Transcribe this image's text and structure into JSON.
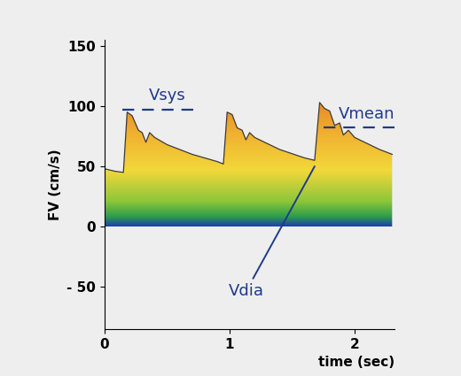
{
  "chart_data": {
    "type": "line",
    "x": [
      0.0,
      0.08,
      0.15,
      0.18,
      0.22,
      0.27,
      0.3,
      0.33,
      0.36,
      0.4,
      0.5,
      0.7,
      0.9,
      0.95,
      0.98,
      1.02,
      1.06,
      1.1,
      1.13,
      1.16,
      1.2,
      1.4,
      1.6,
      1.68,
      1.72,
      1.76,
      1.8,
      1.84,
      1.88,
      1.91,
      1.95,
      2.0,
      2.2,
      2.3
    ],
    "values": [
      48,
      46,
      45,
      95,
      92,
      80,
      78,
      70,
      78,
      74,
      68,
      60,
      54,
      52,
      95,
      93,
      82,
      80,
      72,
      78,
      74,
      64,
      57,
      55,
      103,
      98,
      96,
      84,
      86,
      76,
      80,
      74,
      64,
      60
    ],
    "xlabel": "time (sec)",
    "ylabel": "FV (cm/s)",
    "xlim": [
      0,
      2.32
    ],
    "xticks": [
      0,
      1,
      2
    ],
    "ylim": [
      -85,
      155
    ],
    "yticks": [
      {
        "value": -50,
        "label": "- 50"
      },
      0,
      50,
      100,
      150
    ],
    "annotations": [
      {
        "text": "Vsys",
        "y": 97,
        "x": [
          0.14,
          0.76
        ]
      },
      {
        "text": "Vmean",
        "y": 82,
        "x": [
          1.75,
          2.32
        ]
      },
      {
        "text": "Vdia",
        "x": 1.68,
        "y": 50
      }
    ]
  }
}
